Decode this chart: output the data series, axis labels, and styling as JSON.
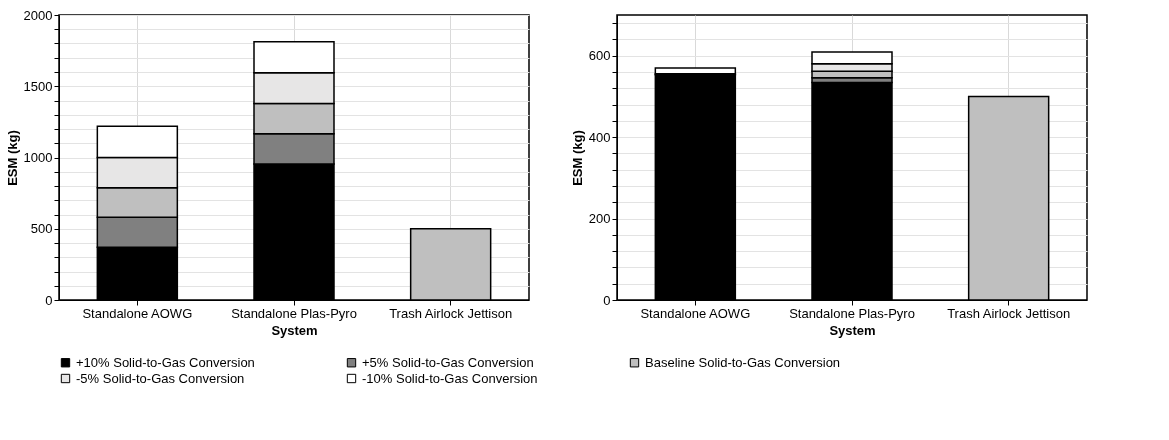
{
  "chart_data": [
    {
      "type": "bar",
      "stacked": true,
      "xlabel": "System",
      "ylabel": "ESM (kg)",
      "categories": [
        "Standalone AOWG",
        "Standalone Plas-Pyro",
        "Trash Airlock Jettison"
      ],
      "series": [
        {
          "name": "+10% Solid-to-Gas Conversion",
          "color": "#000000",
          "values": [
            371,
            955,
            null
          ]
        },
        {
          "name": "+5% Solid-to-Gas Conversion",
          "color": "#808080",
          "values": [
            210,
            212,
            null
          ]
        },
        {
          "name": "Baseline Solid-to-Gas Conversion",
          "color": "#bfbfbf",
          "values": [
            207,
            212,
            500
          ]
        },
        {
          "name": "-5% Solid-to-Gas Conversion",
          "color": "#e7e6e6",
          "values": [
            212,
            216,
            null
          ]
        },
        {
          "name": "-10% Solid-to-Gas Conversion",
          "color": "#ffffff",
          "values": [
            219,
            217,
            null
          ]
        }
      ],
      "ylim": [
        0,
        2000
      ],
      "yticks": [
        0,
        {
          "value": 100,
          "label": null
        },
        {
          "value": 200,
          "label": null
        },
        {
          "value": 300,
          "label": null
        },
        {
          "value": 400,
          "label": null
        },
        500,
        {
          "value": 600,
          "label": null
        },
        {
          "value": 700,
          "label": null
        },
        {
          "value": 800,
          "label": null
        },
        {
          "value": 900,
          "label": null
        },
        1000,
        {
          "value": 1100,
          "label": null
        },
        {
          "value": 1200,
          "label": null
        },
        {
          "value": 1300,
          "label": null
        },
        {
          "value": 1400,
          "label": null
        },
        1500,
        {
          "value": 1600,
          "label": null
        },
        {
          "value": 1700,
          "label": null
        },
        {
          "value": 1800,
          "label": null
        },
        {
          "value": 1900,
          "label": null
        },
        2000
      ],
      "grid": true,
      "legend": "bottom"
    },
    {
      "type": "bar",
      "stacked": true,
      "xlabel": "System",
      "ylabel": "ESM (kg)",
      "categories": [
        "Standalone AOWG",
        "Standalone Plas-Pyro",
        "Trash Airlock Jettison"
      ],
      "series": [
        {
          "name": "+10% Solid-to-Gas Conversion",
          "color": "#000000",
          "values": [
            553,
            534,
            null
          ]
        },
        {
          "name": "+5% Solid-to-Gas Conversion",
          "color": "#808080",
          "values": [
            null,
            12,
            null
          ]
        },
        {
          "name": "Baseline Solid-to-Gas Conversion",
          "color": "#bfbfbf",
          "values": [
            null,
            16,
            500
          ]
        },
        {
          "name": "-5% Solid-to-Gas Conversion",
          "color": "#e7e6e6",
          "values": [
            3,
            18,
            null
          ]
        },
        {
          "name": "-10% Solid-to-Gas Conversion",
          "color": "#ffffff",
          "values": [
            14,
            29,
            null
          ]
        }
      ],
      "ylim": [
        0,
        700
      ],
      "yticks": [
        0,
        {
          "value": 40,
          "label": null
        },
        {
          "value": 80,
          "label": null
        },
        {
          "value": 120,
          "label": null
        },
        {
          "value": 160,
          "label": null
        },
        200,
        {
          "value": 240,
          "label": null
        },
        {
          "value": 280,
          "label": null
        },
        {
          "value": 320,
          "label": null
        },
        {
          "value": 360,
          "label": null
        },
        400,
        {
          "value": 440,
          "label": null
        },
        {
          "value": 480,
          "label": null
        },
        {
          "value": 520,
          "label": null
        },
        {
          "value": 560,
          "label": null
        },
        600,
        {
          "value": 640,
          "label": null
        },
        {
          "value": 680,
          "label": null
        }
      ],
      "grid": true,
      "legend": "bottom"
    }
  ]
}
